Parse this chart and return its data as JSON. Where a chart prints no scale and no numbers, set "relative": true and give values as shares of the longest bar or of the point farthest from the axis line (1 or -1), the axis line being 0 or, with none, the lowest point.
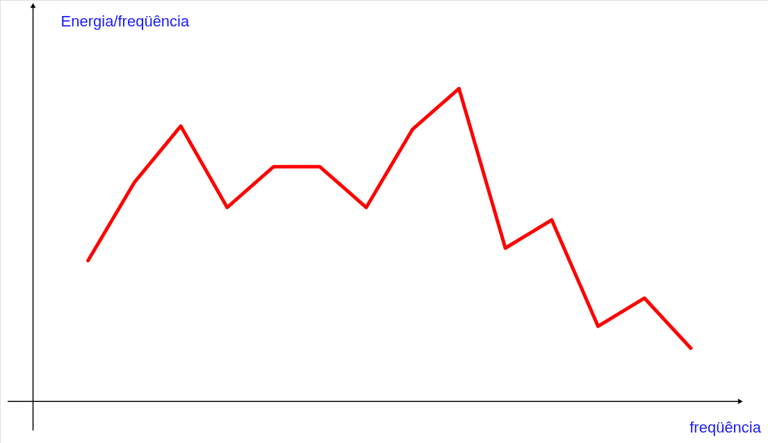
{
  "chart_data": {
    "type": "line",
    "relative": true,
    "xlabel": "freqüência",
    "ylabel": "Energia/freqüência",
    "categories": [
      null,
      null,
      null,
      null,
      null,
      null,
      null,
      null,
      null,
      null,
      null,
      null,
      null,
      null
    ],
    "series": [
      {
        "color": "#ff0000",
        "values": [
          0.45,
          0.7,
          0.88,
          0.62,
          0.75,
          0.75,
          0.62,
          0.87,
          1.0,
          0.49,
          0.58,
          0.24,
          0.33,
          0.17
        ]
      }
    ],
    "marker": "none"
  }
}
